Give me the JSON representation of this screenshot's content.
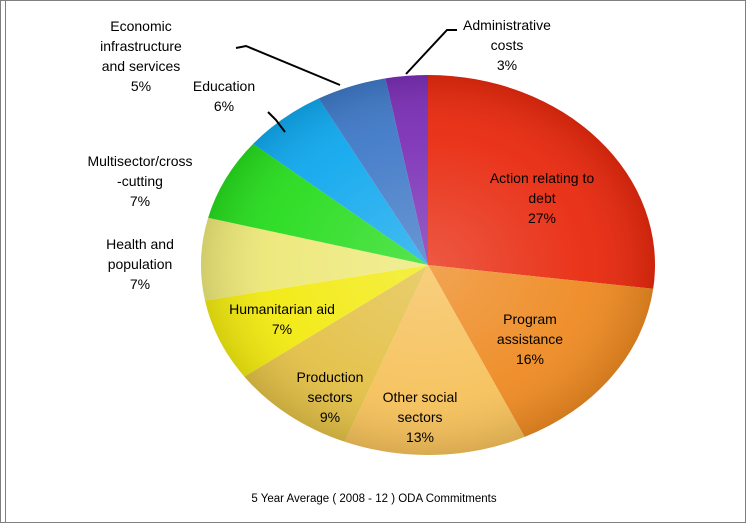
{
  "chart_data": {
    "type": "pie",
    "caption": "5 Year Average ( 2008 - 12 ) ODA Commitments",
    "slices": [
      {
        "lines": [
          "Action relating to",
          "debt",
          "27%"
        ],
        "value": 27,
        "color": "#e8290e"
      },
      {
        "lines": [
          "Program",
          "assistance",
          "16%"
        ],
        "value": 16,
        "color": "#ee8a22"
      },
      {
        "lines": [
          "Other social",
          "sectors",
          "13%"
        ],
        "value": 13,
        "color": "#f6c15a"
      },
      {
        "lines": [
          "Production",
          "sectors",
          "9%"
        ],
        "value": 9,
        "color": "#e3c046"
      },
      {
        "lines": [
          "Humanitarian aid",
          "7%"
        ],
        "value": 7,
        "color": "#f2ea10"
      },
      {
        "lines": [
          "Health and",
          "population",
          "7%"
        ],
        "value": 7,
        "color": "#ede878"
      },
      {
        "lines": [
          "Multisector/cross",
          "-cutting",
          "7%"
        ],
        "value": 7,
        "color": "#27dc1e"
      },
      {
        "lines": [
          "Education",
          "6%"
        ],
        "value": 6,
        "color": "#10a8ee"
      },
      {
        "lines": [
          "Economic",
          "infrastructure",
          "and services",
          "5%"
        ],
        "value": 5,
        "color": "#3f79c7"
      },
      {
        "lines": [
          "Administrative",
          "costs",
          "3%"
        ],
        "value": 3,
        "color": "#7b2fb5"
      }
    ]
  }
}
